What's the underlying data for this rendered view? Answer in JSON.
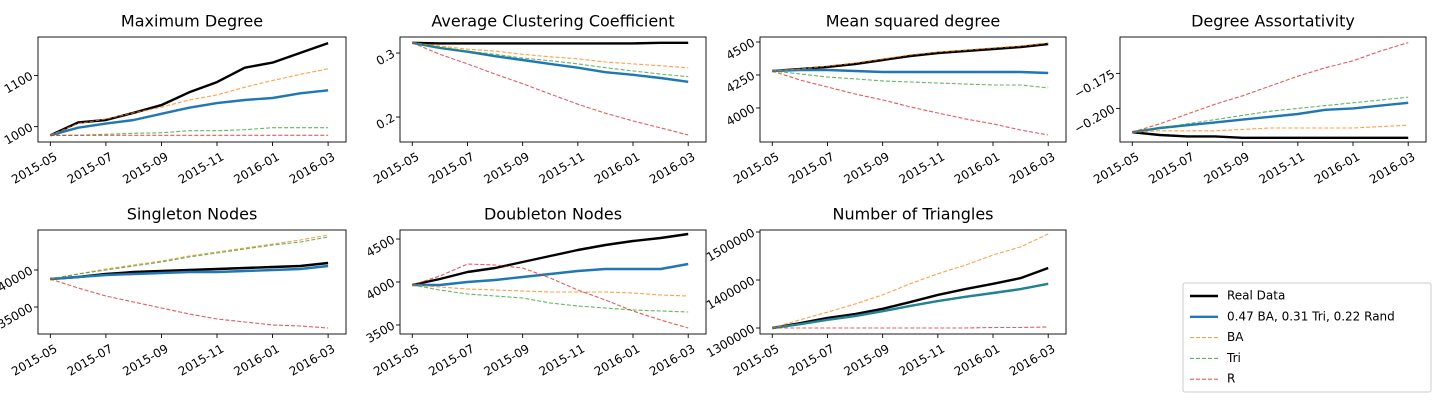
{
  "legend": {
    "location": "lower right",
    "entries": [
      {
        "name": "Real Data",
        "color": "#000000",
        "linewidth": 2.2,
        "dashed": false
      },
      {
        "name": "0.47 BA, 0.31 Tri, 0.22 Rand",
        "color": "#1f77b4",
        "linewidth": 2.2,
        "dashed": false
      },
      {
        "name": "BA",
        "color": "#ff7f0e",
        "linewidth": 1,
        "dashed": true
      },
      {
        "name": "Tri",
        "color": "#2ca02c",
        "linewidth": 1,
        "dashed": true
      },
      {
        "name": "R",
        "color": "#d62728",
        "linewidth": 1,
        "dashed": true
      }
    ]
  },
  "chart_data": [
    {
      "type": "line",
      "title": "Maximum Degree",
      "x": [
        "2015-05",
        "2015-06",
        "2015-07",
        "2015-08",
        "2015-09",
        "2015-10",
        "2015-11",
        "2015-12",
        "2016-01",
        "2016-02",
        "2016-03"
      ],
      "xticks": [
        "2015-05",
        "2015-07",
        "2015-09",
        "2015-11",
        "2016-01",
        "2016-03"
      ],
      "ylim": [
        970,
        1175
      ],
      "yticks": [
        1000,
        1100
      ],
      "series": [
        {
          "values": [
            983,
            1008,
            1013,
            1027,
            1042,
            1067,
            1087,
            1115,
            1125,
            1144,
            1163
          ]
        },
        {
          "values": [
            983,
            998,
            1006,
            1013,
            1025,
            1037,
            1046,
            1052,
            1056,
            1065,
            1071
          ]
        },
        {
          "values": [
            983,
            1006,
            1015,
            1027,
            1038,
            1052,
            1062,
            1077,
            1090,
            1102,
            1113
          ]
        },
        {
          "values": [
            983,
            983,
            985,
            987,
            988,
            992,
            992,
            994,
            998,
            998,
            998
          ]
        },
        {
          "values": [
            983,
            983,
            983,
            983,
            983,
            983,
            983,
            983,
            983,
            983,
            983
          ]
        }
      ]
    },
    {
      "type": "line",
      "title": "Average Clustering Coefficient",
      "x": [
        "2015-05",
        "2015-06",
        "2015-07",
        "2015-08",
        "2015-09",
        "2015-10",
        "2015-11",
        "2015-12",
        "2016-01",
        "2016-02",
        "2016-03"
      ],
      "xticks": [
        "2015-05",
        "2015-07",
        "2015-09",
        "2015-11",
        "2016-01",
        "2016-03"
      ],
      "ylim": [
        0.161,
        0.325
      ],
      "yticks": [
        0.2,
        0.3
      ],
      "series": [
        {
          "values": [
            0.316,
            0.315,
            0.315,
            0.315,
            0.315,
            0.315,
            0.315,
            0.315,
            0.315,
            0.316,
            0.316
          ]
        },
        {
          "values": [
            0.316,
            0.308,
            0.302,
            0.295,
            0.289,
            0.283,
            0.277,
            0.27,
            0.266,
            0.261,
            0.255
          ]
        },
        {
          "values": [
            0.316,
            0.311,
            0.306,
            0.303,
            0.298,
            0.294,
            0.291,
            0.286,
            0.283,
            0.28,
            0.277
          ]
        },
        {
          "values": [
            0.316,
            0.309,
            0.303,
            0.298,
            0.292,
            0.288,
            0.283,
            0.277,
            0.272,
            0.267,
            0.263
          ]
        },
        {
          "values": [
            0.316,
            0.298,
            0.283,
            0.267,
            0.252,
            0.236,
            0.22,
            0.206,
            0.194,
            0.183,
            0.172
          ]
        }
      ]
    },
    {
      "type": "line",
      "title": "Mean squared degree",
      "x": [
        "2015-05",
        "2015-06",
        "2015-07",
        "2015-08",
        "2015-09",
        "2015-10",
        "2015-11",
        "2015-12",
        "2016-01",
        "2016-02",
        "2016-03"
      ],
      "xticks": [
        "2015-05",
        "2015-07",
        "2015-09",
        "2015-11",
        "2016-01",
        "2016-03"
      ],
      "ylim": [
        3742,
        4538
      ],
      "yticks": [
        4000,
        4250,
        4500
      ],
      "series": [
        {
          "values": [
            4280,
            4295,
            4311,
            4333,
            4364,
            4394,
            4417,
            4432,
            4447,
            4462,
            4485
          ]
        },
        {
          "values": [
            4280,
            4288,
            4288,
            4280,
            4273,
            4273,
            4273,
            4273,
            4273,
            4273,
            4265
          ]
        },
        {
          "values": [
            4280,
            4295,
            4318,
            4341,
            4371,
            4402,
            4424,
            4439,
            4455,
            4470,
            4492
          ]
        },
        {
          "values": [
            4280,
            4258,
            4235,
            4220,
            4205,
            4197,
            4189,
            4182,
            4174,
            4174,
            4152
          ]
        },
        {
          "values": [
            4280,
            4212,
            4159,
            4106,
            4061,
            4008,
            3962,
            3917,
            3879,
            3833,
            3795
          ]
        }
      ]
    },
    {
      "type": "line",
      "title": "Degree Assortativity",
      "x": [
        "2015-05",
        "2015-06",
        "2015-07",
        "2015-08",
        "2015-09",
        "2015-10",
        "2015-11",
        "2015-12",
        "2016-01",
        "2016-02",
        "2016-03"
      ],
      "xticks": [
        "2015-05",
        "2015-07",
        "2015-09",
        "2015-11",
        "2016-01",
        "2016-03"
      ],
      "ylim": [
        -0.224,
        -0.149
      ],
      "yticks": [
        {
          "value": -0.2,
          "label": "−0.200"
        },
        {
          "value": -0.175,
          "label": "−0.175"
        }
      ],
      "series": [
        {
          "values": [
            -0.217,
            -0.219,
            -0.22,
            -0.22,
            -0.221,
            -0.221,
            -0.221,
            -0.221,
            -0.221,
            -0.221,
            -0.221
          ]
        },
        {
          "values": [
            -0.217,
            -0.214,
            -0.212,
            -0.21,
            -0.208,
            -0.206,
            -0.204,
            -0.201,
            -0.2,
            -0.198,
            -0.196
          ]
        },
        {
          "values": [
            -0.217,
            -0.216,
            -0.216,
            -0.216,
            -0.215,
            -0.214,
            -0.214,
            -0.214,
            -0.214,
            -0.213,
            -0.212
          ]
        },
        {
          "values": [
            -0.217,
            -0.214,
            -0.211,
            -0.208,
            -0.205,
            -0.202,
            -0.2,
            -0.198,
            -0.196,
            -0.194,
            -0.192
          ]
        },
        {
          "values": [
            -0.217,
            -0.211,
            -0.204,
            -0.197,
            -0.191,
            -0.184,
            -0.177,
            -0.171,
            -0.166,
            -0.159,
            -0.153
          ]
        }
      ]
    },
    {
      "type": "line",
      "title": "Singleton Nodes",
      "x": [
        "2015-05",
        "2015-06",
        "2015-07",
        "2015-08",
        "2015-09",
        "2015-10",
        "2015-11",
        "2015-12",
        "2016-01",
        "2016-02",
        "2016-03"
      ],
      "xticks": [
        "2015-05",
        "2015-07",
        "2015-09",
        "2015-11",
        "2016-01",
        "2016-03"
      ],
      "ylim": [
        31351,
        45405
      ],
      "yticks": [
        35000,
        40000
      ],
      "series": [
        {
          "values": [
            38784,
            39054,
            39459,
            39730,
            39865,
            40000,
            40135,
            40270,
            40405,
            40541,
            40946
          ]
        },
        {
          "values": [
            38784,
            39054,
            39324,
            39459,
            39595,
            39730,
            39730,
            39865,
            40000,
            40135,
            40541
          ]
        },
        {
          "values": [
            38784,
            39459,
            40135,
            40676,
            41216,
            41892,
            42432,
            42973,
            43514,
            44054,
            44730
          ]
        },
        {
          "values": [
            38784,
            39459,
            40000,
            40541,
            41081,
            41757,
            42297,
            42838,
            43378,
            43784,
            44459
          ]
        },
        {
          "values": [
            38784,
            37568,
            36486,
            35676,
            34865,
            34054,
            33378,
            32973,
            32568,
            32432,
            32162
          ]
        }
      ]
    },
    {
      "type": "line",
      "title": "Doubleton Nodes",
      "x": [
        "2015-05",
        "2015-06",
        "2015-07",
        "2015-08",
        "2015-09",
        "2015-10",
        "2015-11",
        "2015-12",
        "2016-01",
        "2016-02",
        "2016-03"
      ],
      "xticks": [
        "2015-05",
        "2015-07",
        "2015-09",
        "2015-11",
        "2016-01",
        "2016-03"
      ],
      "ylim": [
        3395,
        4605
      ],
      "yticks": [
        3500,
        4000,
        4500
      ],
      "series": [
        {
          "values": [
            3965,
            4035,
            4116,
            4163,
            4233,
            4302,
            4372,
            4430,
            4477,
            4512,
            4558
          ]
        },
        {
          "values": [
            3965,
            3965,
            4000,
            4023,
            4058,
            4093,
            4128,
            4151,
            4151,
            4151,
            4209
          ]
        },
        {
          "values": [
            3965,
            3942,
            3919,
            3907,
            3895,
            3884,
            3884,
            3884,
            3872,
            3849,
            3837
          ]
        },
        {
          "values": [
            3965,
            3907,
            3860,
            3837,
            3814,
            3756,
            3721,
            3698,
            3674,
            3663,
            3651
          ]
        },
        {
          "values": [
            3965,
            4070,
            4209,
            4198,
            4163,
            4047,
            3907,
            3791,
            3663,
            3558,
            3465
          ]
        }
      ]
    },
    {
      "type": "line",
      "title": "Number of Triangles",
      "x": [
        "2015-05",
        "2015-06",
        "2015-07",
        "2015-08",
        "2015-09",
        "2015-10",
        "2015-11",
        "2015-12",
        "2016-01",
        "2016-02",
        "2016-03"
      ],
      "xticks": [
        "2015-05",
        "2015-07",
        "2015-09",
        "2015-11",
        "2016-01",
        "2016-03"
      ],
      "ylim": [
        1287500,
        1504167
      ],
      "yticks": [
        1300000,
        1400000,
        1500000
      ],
      "series": [
        {
          "values": [
            1300000,
            1310000,
            1321000,
            1329000,
            1340000,
            1354000,
            1369000,
            1381000,
            1392000,
            1404000,
            1425000
          ]
        },
        {
          "values": [
            1300000,
            1308000,
            1317000,
            1325000,
            1335000,
            1346000,
            1356000,
            1365000,
            1373000,
            1381000,
            1392000
          ]
        },
        {
          "values": [
            1300000,
            1317000,
            1333000,
            1350000,
            1369000,
            1392000,
            1413000,
            1431000,
            1452000,
            1469000,
            1496000
          ]
        },
        {
          "values": [
            1300000,
            1308000,
            1316000,
            1325000,
            1335000,
            1346000,
            1356000,
            1365000,
            1374000,
            1381000,
            1392000
          ]
        },
        {
          "values": [
            1300000,
            1300000,
            1300000,
            1300000,
            1300000,
            1300000,
            1300000,
            1300000,
            1301000,
            1301000,
            1302000
          ]
        }
      ]
    }
  ]
}
